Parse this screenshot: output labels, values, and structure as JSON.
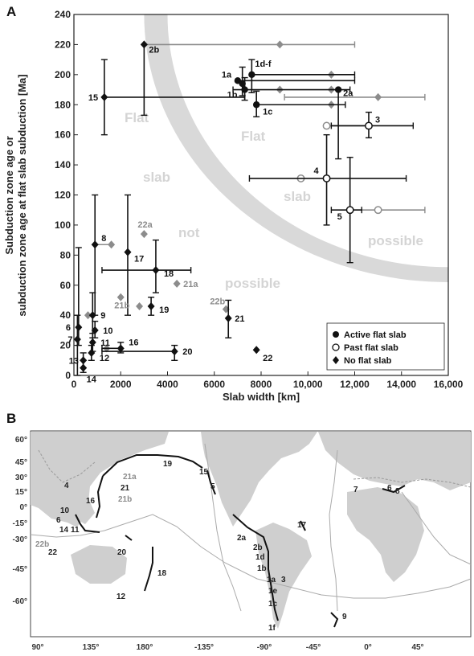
{
  "panels": {
    "a_label": "A",
    "b_label": "B"
  },
  "zone_labels": {
    "left": [
      "Flat",
      "slab",
      "not",
      "possible"
    ],
    "right": [
      "Flat",
      "slab",
      "possible"
    ]
  },
  "legend": {
    "position": "bottom-right",
    "entries": [
      {
        "label": "Active flat slab",
        "marker": "filled-circle"
      },
      {
        "label": "Past flat slab",
        "marker": "open-circle"
      },
      {
        "label": "No flat slab",
        "marker": "diamond"
      }
    ]
  },
  "colors": {
    "black": "#111111",
    "gray": "#8c8c8c",
    "zone": "#d9d9d9",
    "land": "#cfcfcf",
    "ocean": "#ffffff"
  },
  "chart_data": {
    "type": "scatter",
    "xlabel": "Slab width [km]",
    "ylabel_line1": "Subduction zone age or",
    "ylabel_line2": "subduction zone age at flat slab subduction [Ma]",
    "xlim": [
      0,
      16000
    ],
    "ylim": [
      0,
      240
    ],
    "x_ticks": [
      0,
      2000,
      4000,
      6000,
      8000,
      10000,
      12000,
      14000,
      16000
    ],
    "x_tick_labels": [
      "0",
      "2000",
      "4000",
      "6000",
      "8000",
      "10,000",
      "12,000",
      "14,000",
      "16,000"
    ],
    "y_ticks": [
      0,
      20,
      40,
      60,
      80,
      100,
      120,
      140,
      160,
      180,
      200,
      220,
      240
    ],
    "y_tick_labels": [
      "0",
      "20",
      "40",
      "60",
      "80",
      "100",
      "120",
      "140",
      "160",
      "180",
      "200",
      "220",
      "240"
    ],
    "points": [
      {
        "label": "1a",
        "x": 7000,
        "y": 196,
        "marker": "active",
        "color": "black",
        "xerr": [
          7000,
          12000
        ],
        "yerr": null
      },
      {
        "label": "1b",
        "x": 7300,
        "y": 190,
        "marker": "active",
        "color": "black",
        "xerr": [
          6800,
          11800
        ],
        "yerr": [
          183,
          198
        ]
      },
      {
        "label": "1c",
        "x": 7800,
        "y": 180,
        "marker": "active",
        "color": "black",
        "xerr": [
          7800,
          11600
        ],
        "yerr": [
          172,
          189
        ]
      },
      {
        "label": "1d-f",
        "x": 7600,
        "y": 200,
        "marker": "active",
        "color": "black",
        "xerr": [
          7600,
          12000
        ],
        "yerr": [
          188,
          210
        ]
      },
      {
        "label": "",
        "x": 7200,
        "y": 194,
        "marker": "active",
        "color": "black",
        "xerr": null,
        "yerr": [
          186,
          205
        ]
      },
      {
        "label": "",
        "x": 11000,
        "y": 200,
        "marker": "diamond",
        "color": "gray",
        "xerr": null,
        "yerr": null
      },
      {
        "label": "",
        "x": 11000,
        "y": 190,
        "marker": "diamond",
        "color": "gray",
        "xerr": null,
        "yerr": null
      },
      {
        "label": "",
        "x": 11000,
        "y": 180,
        "marker": "diamond",
        "color": "gray",
        "xerr": null,
        "yerr": null
      },
      {
        "label": "",
        "x": 8800,
        "y": 190,
        "marker": "diamond",
        "color": "gray",
        "xerr": null,
        "yerr": null
      },
      {
        "label": "2a",
        "x": 11300,
        "y": 190,
        "marker": "active",
        "color": "black",
        "xerr": null,
        "yerr": [
          144,
          190
        ]
      },
      {
        "label": "",
        "x": 13000,
        "y": 185,
        "marker": "diamond",
        "color": "gray",
        "xerr": [
          9000,
          15000
        ],
        "yerr": null
      },
      {
        "label": "2b",
        "x": 3000,
        "y": 220,
        "marker": "diamond",
        "color": "black",
        "xerr": null,
        "yerr": [
          173,
          220
        ]
      },
      {
        "label": "",
        "x": 8800,
        "y": 220,
        "marker": "diamond",
        "color": "gray",
        "xerr": [
          3000,
          12000
        ],
        "yerr": null
      },
      {
        "label": "3",
        "x": 12600,
        "y": 166,
        "marker": "past",
        "color": "black",
        "xerr": [
          11000,
          14500
        ],
        "yerr": [
          158,
          175
        ]
      },
      {
        "label": "",
        "x": 10800,
        "y": 166,
        "marker": "past",
        "color": "gray",
        "xerr": [
          10800,
          12600
        ],
        "yerr": null
      },
      {
        "label": "4",
        "x": 10800,
        "y": 131,
        "marker": "past",
        "color": "black",
        "xerr": [
          7500,
          14200
        ],
        "yerr": [
          100,
          160
        ]
      },
      {
        "label": "",
        "x": 9700,
        "y": 131,
        "marker": "past",
        "color": "gray",
        "xerr": null,
        "yerr": null
      },
      {
        "label": "5",
        "x": 11800,
        "y": 110,
        "marker": "past",
        "color": "black",
        "xerr": [
          11000,
          12300
        ],
        "yerr": [
          75,
          145
        ]
      },
      {
        "label": "",
        "x": 13000,
        "y": 110,
        "marker": "past",
        "color": "gray",
        "xerr": [
          11800,
          15000
        ],
        "yerr": null
      },
      {
        "label": "6",
        "x": 200,
        "y": 32,
        "marker": "diamond",
        "color": "black",
        "xerr": null,
        "yerr": [
          20,
          85
        ]
      },
      {
        "label": "7",
        "x": 150,
        "y": 24,
        "marker": "diamond",
        "color": "black",
        "xerr": null,
        "yerr": [
          0,
          40
        ]
      },
      {
        "label": "8",
        "x": 900,
        "y": 87,
        "marker": "diamond",
        "color": "black",
        "xerr": null,
        "yerr": [
          40,
          120
        ]
      },
      {
        "label": "",
        "x": 1600,
        "y": 87,
        "marker": "diamond",
        "color": "gray",
        "xerr": [
          900,
          1600
        ],
        "yerr": null
      },
      {
        "label": "9",
        "x": 800,
        "y": 40,
        "marker": "diamond",
        "color": "black",
        "xerr": null,
        "yerr": [
          25,
          55
        ]
      },
      {
        "label": "",
        "x": 600,
        "y": 40,
        "marker": "diamond",
        "color": "gray",
        "xerr": null,
        "yerr": null
      },
      {
        "label": "10",
        "x": 900,
        "y": 30,
        "marker": "diamond",
        "color": "black",
        "xerr": null,
        "yerr": [
          25,
          36
        ]
      },
      {
        "label": "11",
        "x": 800,
        "y": 22,
        "marker": "diamond",
        "color": "black",
        "xerr": null,
        "yerr": [
          16,
          28
        ]
      },
      {
        "label": "12",
        "x": 750,
        "y": 15,
        "marker": "diamond",
        "color": "black",
        "xerr": null,
        "yerr": [
          10,
          20
        ]
      },
      {
        "label": "13",
        "x": 400,
        "y": 10,
        "marker": "diamond",
        "color": "black",
        "xerr": null,
        "yerr": [
          5,
          15
        ]
      },
      {
        "label": "14",
        "x": 400,
        "y": 5,
        "marker": "diamond",
        "color": "black",
        "xerr": null,
        "yerr": [
          2,
          10
        ]
      },
      {
        "label": "15",
        "x": 1300,
        "y": 185,
        "marker": "diamond",
        "color": "black",
        "xerr": [
          1300,
          7300
        ],
        "yerr": [
          160,
          210
        ]
      },
      {
        "label": "16",
        "x": 2000,
        "y": 18,
        "marker": "diamond",
        "color": "black",
        "xerr": [
          1200,
          2000
        ],
        "yerr": [
          15,
          22
        ]
      },
      {
        "label": "",
        "x": 1400,
        "y": 18,
        "marker": "diamond",
        "color": "gray",
        "xerr": null,
        "yerr": null
      },
      {
        "label": "17",
        "x": 2300,
        "y": 82,
        "marker": "diamond",
        "color": "black",
        "xerr": null,
        "yerr": [
          40,
          120
        ]
      },
      {
        "label": "18",
        "x": 3500,
        "y": 70,
        "marker": "diamond",
        "color": "black",
        "xerr": [
          1200,
          5000
        ],
        "yerr": [
          55,
          90
        ]
      },
      {
        "label": "19",
        "x": 3300,
        "y": 46,
        "marker": "diamond",
        "color": "black",
        "xerr": null,
        "yerr": [
          40,
          52
        ]
      },
      {
        "label": "",
        "x": 2800,
        "y": 46,
        "marker": "diamond",
        "color": "gray",
        "xerr": null,
        "yerr": null
      },
      {
        "label": "20",
        "x": 4300,
        "y": 16,
        "marker": "diamond",
        "color": "black",
        "xerr": [
          1200,
          4300
        ],
        "yerr": [
          10,
          20
        ]
      },
      {
        "label": "21",
        "x": 6600,
        "y": 38,
        "marker": "diamond",
        "color": "black",
        "xerr": null,
        "yerr": [
          25,
          50
        ]
      },
      {
        "label": "22",
        "x": 7800,
        "y": 17,
        "marker": "diamond",
        "color": "black",
        "xerr": null,
        "yerr": null
      },
      {
        "label": "21a",
        "x": 4400,
        "y": 61,
        "marker": "diamond",
        "color": "gray",
        "xerr": null,
        "yerr": null
      },
      {
        "label": "21b",
        "x": 2000,
        "y": 52,
        "marker": "diamond",
        "color": "gray",
        "xerr": null,
        "yerr": null
      },
      {
        "label": "22a",
        "x": 3000,
        "y": 94,
        "marker": "diamond",
        "color": "gray",
        "xerr": null,
        "yerr": null
      },
      {
        "label": "22b",
        "x": 6500,
        "y": 44,
        "marker": "diamond",
        "color": "gray",
        "xerr": null,
        "yerr": null
      }
    ]
  },
  "map": {
    "lat_labels": [
      "60°",
      "45°",
      "30°",
      "15°",
      "0°",
      "-15°",
      "-30°",
      "-45°",
      "-60°"
    ],
    "lon_labels": [
      "90°",
      "135°",
      "180°",
      "-135°",
      "-90°",
      "-45°",
      "0°",
      "45°"
    ],
    "labels": [
      {
        "text": "19",
        "color": "black"
      },
      {
        "text": "15",
        "color": "black"
      },
      {
        "text": "5",
        "color": "black"
      },
      {
        "text": "21a",
        "color": "gray"
      },
      {
        "text": "21",
        "color": "black"
      },
      {
        "text": "21b",
        "color": "gray"
      },
      {
        "text": "4",
        "color": "black"
      },
      {
        "text": "16",
        "color": "black"
      },
      {
        "text": "10",
        "color": "black"
      },
      {
        "text": "6",
        "color": "black"
      },
      {
        "text": "14",
        "color": "black"
      },
      {
        "text": "11",
        "color": "black"
      },
      {
        "text": "22b",
        "color": "gray"
      },
      {
        "text": "22",
        "color": "black"
      },
      {
        "text": "20",
        "color": "black"
      },
      {
        "text": "18",
        "color": "black"
      },
      {
        "text": "12",
        "color": "black"
      },
      {
        "text": "2a",
        "color": "black"
      },
      {
        "text": "2b",
        "color": "black"
      },
      {
        "text": "1d",
        "color": "black"
      },
      {
        "text": "1b",
        "color": "black"
      },
      {
        "text": "1a",
        "color": "black"
      },
      {
        "text": "1e",
        "color": "black"
      },
      {
        "text": "1c",
        "color": "black"
      },
      {
        "text": "1f",
        "color": "black"
      },
      {
        "text": "3",
        "color": "black"
      },
      {
        "text": "17",
        "color": "black"
      },
      {
        "text": "7",
        "color": "black"
      },
      {
        "text": "6",
        "color": "black"
      },
      {
        "text": "8",
        "color": "black"
      },
      {
        "text": "9",
        "color": "black"
      }
    ]
  }
}
